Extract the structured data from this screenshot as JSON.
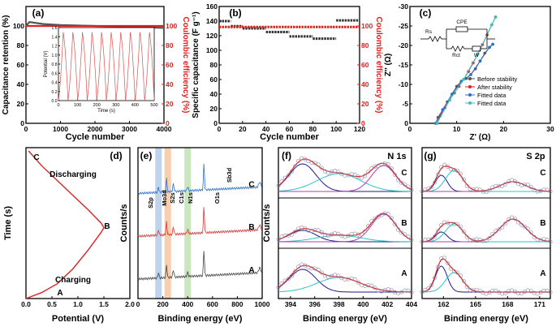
{
  "chart_data": [
    {
      "id": "a",
      "panel_label": "(a)",
      "type": "line",
      "title": "",
      "xlabel": "Cycle number",
      "ylabel_left": "Capacitance retention (%)",
      "ylabel_right": "Coulombic efficiency (%)",
      "xlim": [
        0,
        4000
      ],
      "ylim_left": [
        0,
        120
      ],
      "ylim_right": [
        0,
        120
      ],
      "xticks": [
        0,
        1000,
        2000,
        3000,
        4000
      ],
      "yticks_left": [
        0,
        20,
        40,
        60,
        80,
        100
      ],
      "yticks_right": [
        0,
        20,
        40,
        60,
        80,
        100
      ],
      "series": [
        {
          "name": "Capacitance retention",
          "axis": "left",
          "color": "#555555",
          "x": [
            0,
            100,
            500,
            1000,
            2000,
            3000,
            4000
          ],
          "y": [
            100,
            104,
            102,
            101,
            100,
            99,
            98
          ]
        },
        {
          "name": "Coulombic efficiency",
          "axis": "right",
          "color": "#dd2222",
          "x": [
            0,
            100,
            500,
            1000,
            2000,
            3000,
            4000
          ],
          "y": [
            100,
            100,
            100,
            100,
            100,
            100,
            100
          ]
        }
      ],
      "inset": {
        "xlabel": "Time (s)",
        "ylabel": "Potential (V)",
        "xlim": [
          0,
          500
        ],
        "ylim": [
          0,
          1.6
        ],
        "xticks": [
          0,
          100,
          200,
          300,
          400,
          500
        ],
        "yticks": [
          0.0,
          0.2,
          0.4,
          0.6,
          0.8,
          1.0,
          1.2,
          1.4,
          1.6
        ],
        "cycles": 10,
        "period": 50,
        "vmax": 1.5,
        "color": "#e05050"
      }
    },
    {
      "id": "b",
      "panel_label": "(b)",
      "type": "scatter",
      "xlabel": "Cycle number",
      "ylabel_left": "Specific capacitance (F g⁻¹)",
      "ylabel_right": "Coulombic efficiency (%)",
      "xlim": [
        0,
        120
      ],
      "ylim_left": [
        0,
        160
      ],
      "ylim_right": [
        0,
        120
      ],
      "xticks": [
        0,
        20,
        40,
        60,
        80,
        100,
        120
      ],
      "yticks_left": [
        0,
        20,
        40,
        60,
        80,
        100,
        120,
        140,
        160
      ],
      "yticks_right": [
        0,
        20,
        40,
        60,
        80,
        100
      ],
      "series": [
        {
          "name": "Specific capacitance",
          "axis": "left",
          "color": "#333333",
          "steps": [
            [
              0,
              10,
              140
            ],
            [
              10,
              20,
              133
            ],
            [
              20,
              40,
              130
            ],
            [
              40,
              60,
              125
            ],
            [
              60,
              80,
              119
            ],
            [
              80,
              100,
              116
            ],
            [
              100,
              120,
              141
            ]
          ]
        },
        {
          "name": "Coulombic efficiency",
          "axis": "right",
          "color": "#dd2222",
          "steps": [
            [
              0,
              120,
              99
            ]
          ]
        }
      ]
    },
    {
      "id": "c",
      "panel_label": "(c)",
      "type": "scatter",
      "xlabel": "Z' (Ω)",
      "ylabel": "Z'' (Ω)",
      "xlim": [
        0,
        30
      ],
      "ylim": [
        0,
        -30
      ],
      "xticks": [
        0,
        10,
        20,
        30
      ],
      "yticks": [
        0,
        -5,
        -10,
        -15,
        -20,
        -25,
        -30
      ],
      "legend": [
        "Before stability",
        "After stability",
        "Fitted data",
        "Fitted data"
      ],
      "legend_position": "right",
      "series": [
        {
          "name": "Before stability",
          "color": "#555555",
          "x": [
            5.5,
            6,
            7,
            8,
            9,
            10,
            11,
            12,
            13,
            14,
            15,
            16,
            17,
            17.7
          ],
          "y": [
            0,
            -1.5,
            -3.5,
            -5.5,
            -7.5,
            -9.5,
            -10.8,
            -11.5,
            -12.5,
            -14,
            -16,
            -18,
            -19.5,
            -20.3
          ]
        },
        {
          "name": "After stability",
          "color": "#dd2222",
          "x": [
            5.8,
            6.5,
            7.5,
            8.5,
            9.5,
            10.5,
            11.5,
            12.5,
            13.5,
            14.5,
            15.5,
            16.5,
            17.5,
            18.3
          ],
          "y": [
            0,
            -2,
            -4,
            -6,
            -7.8,
            -9.5,
            -11.3,
            -13.3,
            -15.5,
            -17.8,
            -20.2,
            -22.7,
            -25.3,
            -27.3
          ]
        },
        {
          "name": "Fitted data",
          "color": "#2a6fc9",
          "x": [
            5.5,
            7,
            9,
            11,
            13,
            15,
            17,
            17.7
          ],
          "y": [
            0,
            -3.5,
            -7.5,
            -10.8,
            -12.5,
            -16,
            -19.5,
            -20.3
          ]
        },
        {
          "name": "Fitted data",
          "color": "#33c2c2",
          "x": [
            5.8,
            8.5,
            11.5,
            14.5,
            17.5,
            18.3
          ],
          "y": [
            0,
            -6,
            -11.3,
            -17.8,
            -25.3,
            -27.3
          ]
        }
      ],
      "circuit": {
        "labels": [
          "Rs",
          "CPE",
          "Rct",
          "W"
        ]
      }
    },
    {
      "id": "d",
      "panel_label": "(d)",
      "type": "line",
      "xlabel": "Potential (V)",
      "ylabel": "Time (s)",
      "xlim": [
        0,
        2.0
      ],
      "xticks": [
        0.0,
        0.5,
        1.0,
        1.5,
        2.0
      ],
      "annotations": [
        {
          "text": "C"
        },
        {
          "text": "Discharging"
        },
        {
          "text": "B"
        },
        {
          "text": "Charging"
        },
        {
          "text": "A"
        }
      ],
      "series": [
        {
          "name": "GCD",
          "color": "#dd2222",
          "x": [
            0.0,
            0.3,
            0.6,
            0.9,
            1.2,
            1.45,
            1.5,
            1.45,
            1.2,
            0.9,
            0.6,
            0.3,
            0.05
          ],
          "y": [
            0,
            0.04,
            0.1,
            0.2,
            0.33,
            0.45,
            0.48,
            0.51,
            0.6,
            0.7,
            0.8,
            0.9,
            1.0
          ]
        }
      ]
    },
    {
      "id": "e",
      "panel_label": "(e)",
      "type": "line",
      "xlabel": "Binding energy (eV)",
      "ylabel": "Counts/s",
      "xlim": [
        0,
        1000
      ],
      "xticks": [
        0,
        200,
        400,
        600,
        800,
        1000
      ],
      "peak_labels": [
        "S2p",
        "Mo3d",
        "S2s",
        "C1s",
        "N1s",
        "O1s",
        "Sb3d"
      ],
      "peak_positions": [
        165,
        232,
        228,
        285,
        400,
        531,
        538
      ],
      "bands": [
        {
          "center": 165,
          "color": "#8aaedd"
        },
        {
          "center": 240,
          "color": "#f2a56b"
        },
        {
          "center": 400,
          "color": "#9ed28a"
        }
      ],
      "series": [
        {
          "name": "A",
          "color": "#444444",
          "offset": 0.0
        },
        {
          "name": "B",
          "color": "#dd3333",
          "offset": 0.33
        },
        {
          "name": "C",
          "color": "#2a6fc9",
          "offset": 0.66
        }
      ]
    },
    {
      "id": "f",
      "panel_label": "(f)",
      "type": "line",
      "title": "N 1s",
      "xlabel": "Binding energy (eV)",
      "ylabel": "Counts/s",
      "xlim": [
        393,
        404
      ],
      "xticks": [
        394,
        396,
        398,
        400,
        402,
        404
      ],
      "subpanels": [
        {
          "label": "C",
          "peaks": [
            {
              "c": 395,
              "h": 0.85,
              "w": 1.1,
              "color": "#1a1a8c"
            },
            {
              "c": 398,
              "h": 0.55,
              "w": 1.8,
              "color": "#2ac4c4"
            },
            {
              "c": 401.7,
              "h": 0.8,
              "w": 1.0,
              "color": "#b43cb4"
            }
          ]
        },
        {
          "label": "B",
          "peaks": [
            {
              "c": 395,
              "h": 0.35,
              "w": 1.1,
              "color": "#1a1a8c"
            },
            {
              "c": 398,
              "h": 0.2,
              "w": 1.8,
              "color": "#2ac4c4"
            },
            {
              "c": 401.7,
              "h": 0.85,
              "w": 1.0,
              "color": "#b43cb4"
            }
          ]
        },
        {
          "label": "A",
          "peaks": [
            {
              "c": 395,
              "h": 0.7,
              "w": 1.1,
              "color": "#1a1a8c"
            },
            {
              "c": 398,
              "h": 0.45,
              "w": 1.8,
              "color": "#2ac4c4"
            }
          ]
        }
      ]
    },
    {
      "id": "g",
      "panel_label": "(g)",
      "type": "line",
      "title": "S 2p",
      "xlabel": "Binding energy (eV)",
      "ylabel": "Counts/s",
      "xlim": [
        160,
        172
      ],
      "xticks": [
        162,
        165,
        168,
        171
      ],
      "subpanels": [
        {
          "label": "C",
          "peaks": [
            {
              "c": 161.8,
              "h": 0.5,
              "w": 0.55,
              "color": "#1a1a8c"
            },
            {
              "c": 163,
              "h": 0.65,
              "w": 0.8,
              "color": "#2ac4c4"
            },
            {
              "c": 168.5,
              "h": 0.3,
              "w": 1.2,
              "color": "#b43cb4"
            }
          ]
        },
        {
          "label": "B",
          "peaks": [
            {
              "c": 161.8,
              "h": 0.3,
              "w": 0.55,
              "color": "#1a1a8c"
            },
            {
              "c": 163,
              "h": 0.55,
              "w": 0.8,
              "color": "#2ac4c4"
            },
            {
              "c": 168.5,
              "h": 0.7,
              "w": 1.2,
              "color": "#b43cb4"
            }
          ]
        },
        {
          "label": "A",
          "peaks": [
            {
              "c": 161.8,
              "h": 0.8,
              "w": 0.55,
              "color": "#1a1a8c"
            },
            {
              "c": 163,
              "h": 0.6,
              "w": 0.8,
              "color": "#2ac4c4"
            }
          ]
        }
      ]
    }
  ]
}
